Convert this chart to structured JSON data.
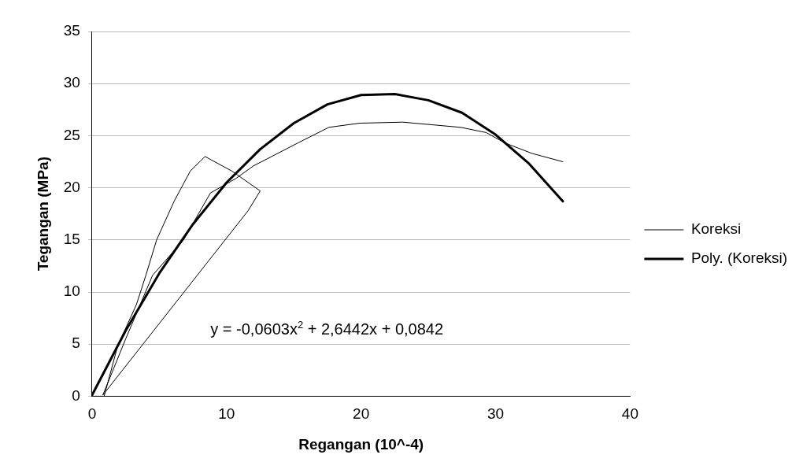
{
  "chart_data": {
    "type": "line",
    "xlabel": "Regangan (10^-4)",
    "ylabel": "Tegangan (MPa)",
    "xlim": [
      0,
      40
    ],
    "xticks": [
      0,
      10,
      20,
      30,
      40
    ],
    "ylim": [
      0,
      35
    ],
    "yticks": [
      0,
      5,
      10,
      15,
      20,
      25,
      30,
      35
    ],
    "grid": "y",
    "legend": "right",
    "marker": "none",
    "line_style": "solid",
    "annotations": [
      "y = -0,0603x$^{2}$ + 2,6442x + 0,0842"
    ],
    "series": [
      {
        "name": "Koreksi",
        "color": "#000000",
        "x": [
          0,
          0.9,
          1.9,
          3.3,
          4.0,
          4.8,
          6.1,
          7.3,
          8.4,
          10.4,
          12.5,
          11.6,
          0.8,
          2.5,
          4.5,
          6.8,
          8.8,
          10.7,
          12.0,
          15.3,
          17.6,
          19.9,
          23.1,
          27.4,
          29.3,
          30.7,
          32.7,
          35.0
        ],
        "values": [
          0,
          0,
          4.8,
          8.8,
          11.6,
          15.0,
          18.7,
          21.6,
          23.0,
          21.6,
          19.7,
          17.8,
          0.1,
          5.5,
          11.6,
          15.0,
          19.5,
          20.9,
          22.1,
          24.3,
          25.8,
          26.2,
          26.3,
          25.8,
          25.3,
          24.3,
          23.3,
          22.5
        ]
      },
      {
        "name": "Poly. (Koreksi)",
        "color": "#000000",
        "x": [
          0,
          2.5,
          5,
          7.5,
          10,
          12.5,
          15,
          17.5,
          20,
          22.5,
          25,
          27.5,
          30,
          32.5,
          35
        ],
        "values": [
          0.1,
          6.3,
          11.8,
          16.5,
          20.5,
          23.7,
          26.2,
          28.0,
          28.9,
          29.0,
          28.4,
          27.2,
          25.1,
          22.3,
          18.7
        ]
      }
    ]
  }
}
